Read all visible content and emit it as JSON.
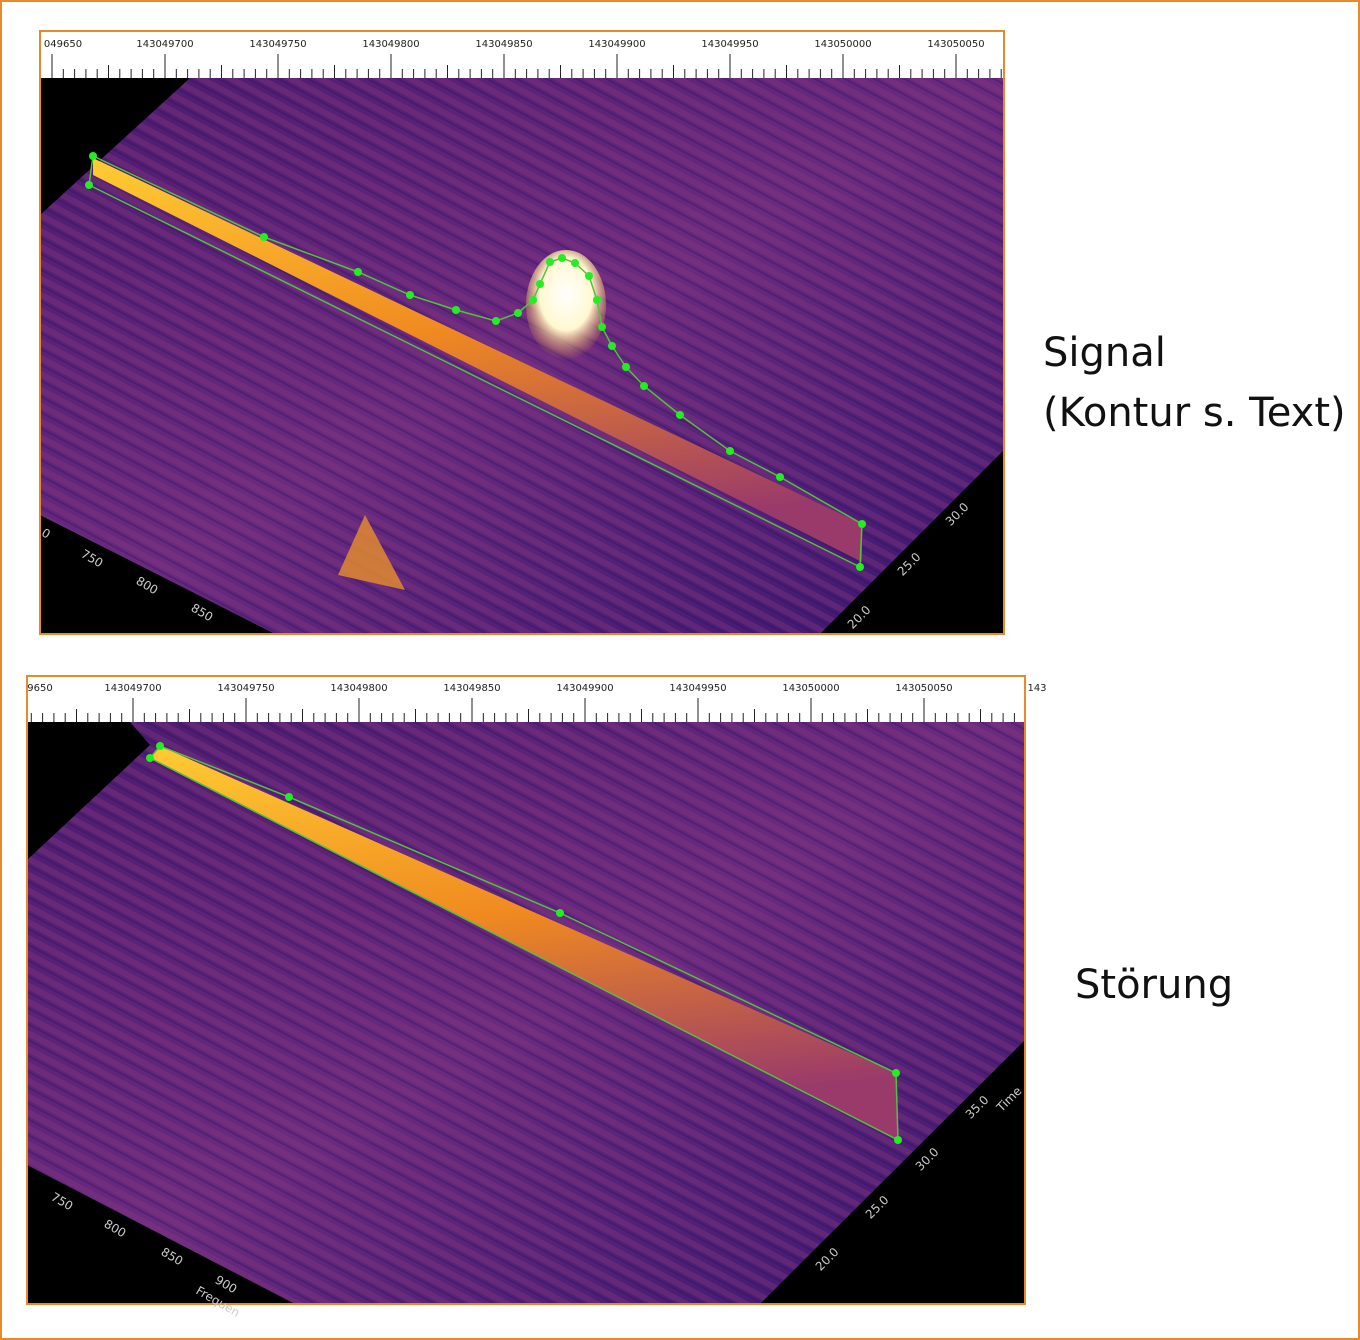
{
  "panels": [
    {
      "ruler_labels": [
        "049650",
        "143049700",
        "143049750",
        "143049800",
        "143049850",
        "143049900",
        "143049950",
        "143050000",
        "143050050"
      ],
      "depth_labels": [
        "0",
        "750",
        "800",
        "850"
      ],
      "time_labels": [
        "20.0",
        "25.0",
        "30.0"
      ]
    },
    {
      "ruler_labels": [
        "9650",
        "143049700",
        "143049750",
        "143049800",
        "143049850",
        "143049900",
        "143049950",
        "143050000",
        "143050050",
        "143"
      ],
      "depth_labels": [
        "750",
        "800",
        "850",
        "900"
      ],
      "depth_axis_title": "Frequen",
      "time_labels": [
        "20.0",
        "25.0",
        "30.0",
        "35.0"
      ],
      "time_axis_title": "Time"
    }
  ],
  "captions": {
    "signal": [
      "Signal",
      "(Kontur s. Text)"
    ],
    "interference": "Störung"
  }
}
